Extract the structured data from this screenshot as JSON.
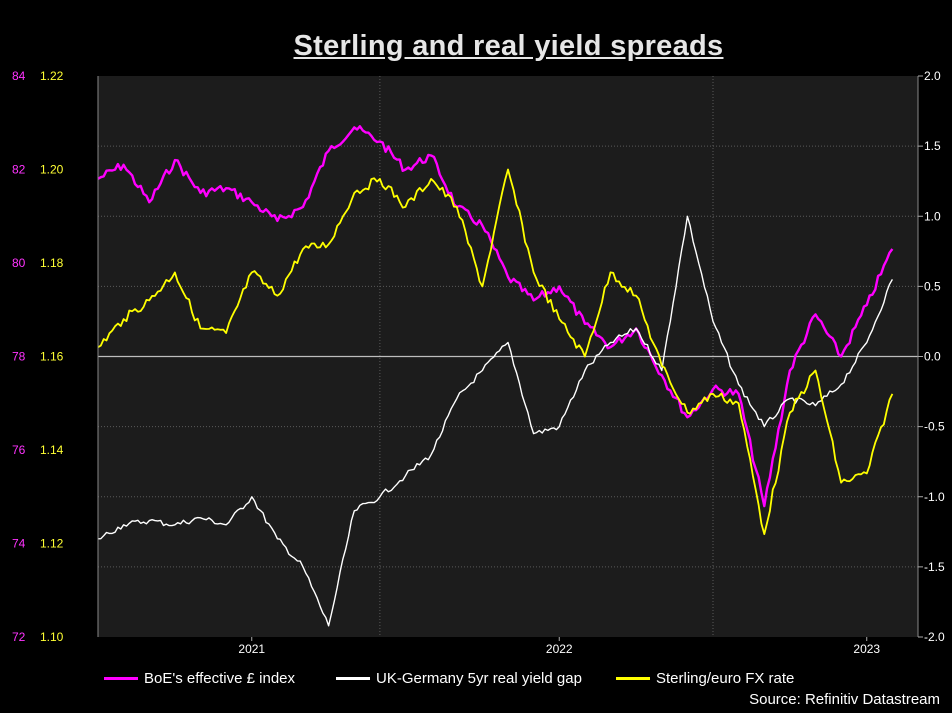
{
  "chart_data": {
    "type": "line",
    "title": "Sterling and real yield spreads",
    "source": "Source: Refinitiv Datastream",
    "x_ticks": [
      "2021",
      "2022",
      "2023"
    ],
    "x_range": [
      "2020-07",
      "2023-03"
    ],
    "left_axis_outer": {
      "ticks": [
        72,
        74,
        76,
        78,
        80,
        82,
        84
      ],
      "range": [
        72,
        84
      ],
      "color": "#ff33ff"
    },
    "left_axis_inner": {
      "ticks": [
        "1.10",
        "1.12",
        "1.14",
        "1.16",
        "1.18",
        "1.20",
        "1.22"
      ],
      "range": [
        1.1,
        1.22
      ],
      "color": "#ffff33"
    },
    "right_axis": {
      "ticks": [
        "-2.0",
        "-1.5",
        "-1.0",
        "-0.5",
        "0.0",
        "0.5",
        "1.0",
        "1.5",
        "2.0"
      ],
      "range": [
        -2.0,
        2.0
      ],
      "color": "#ffffff"
    },
    "series": [
      {
        "name": "BoE's effective £ index",
        "color": "#ff00ff",
        "axis": "left_outer",
        "x": [
          "2020-07",
          "2020-08",
          "2020-09",
          "2020-10",
          "2020-11",
          "2020-12",
          "2021-01",
          "2021-02",
          "2021-03",
          "2021-04",
          "2021-05",
          "2021-06",
          "2021-07",
          "2021-08",
          "2021-09",
          "2021-10",
          "2021-11",
          "2021-12",
          "2022-01",
          "2022-02",
          "2022-03",
          "2022-04",
          "2022-05",
          "2022-06",
          "2022-07",
          "2022-08",
          "2022-09",
          "2022-10",
          "2022-11",
          "2022-12",
          "2023-01",
          "2023-02"
        ],
        "values": [
          81.8,
          82.1,
          81.3,
          82.2,
          81.5,
          81.6,
          81.3,
          80.9,
          81.2,
          82.4,
          82.9,
          82.6,
          82.0,
          82.3,
          81.2,
          80.8,
          79.7,
          79.2,
          79.5,
          78.7,
          78.2,
          78.6,
          77.6,
          76.7,
          77.3,
          77.2,
          74.8,
          77.7,
          78.9,
          78.0,
          79.1,
          80.3
        ]
      },
      {
        "name": "UK-Germany 5yr real yield gap",
        "color": "#ffffff",
        "axis": "right",
        "x": [
          "2020-07",
          "2020-08",
          "2020-09",
          "2020-10",
          "2020-11",
          "2020-12",
          "2021-01",
          "2021-02",
          "2021-03",
          "2021-04",
          "2021-05",
          "2021-06",
          "2021-07",
          "2021-08",
          "2021-09",
          "2021-10",
          "2021-11",
          "2021-12",
          "2022-01",
          "2022-02",
          "2022-03",
          "2022-04",
          "2022-05",
          "2022-06",
          "2022-07",
          "2022-08",
          "2022-09",
          "2022-10",
          "2022-11",
          "2022-12",
          "2023-01",
          "2023-02"
        ],
        "values": [
          -1.3,
          -1.2,
          -1.17,
          -1.2,
          -1.15,
          -1.2,
          -1.0,
          -1.3,
          -1.5,
          -1.92,
          -1.1,
          -1.0,
          -0.85,
          -0.7,
          -0.3,
          -0.1,
          0.1,
          -0.55,
          -0.5,
          -0.1,
          0.1,
          0.2,
          -0.1,
          1.0,
          0.25,
          -0.2,
          -0.5,
          -0.3,
          -0.35,
          -0.2,
          0.1,
          0.55
        ]
      },
      {
        "name": "Sterling/euro FX rate",
        "color": "#ffff00",
        "axis": "left_inner",
        "x": [
          "2020-07",
          "2020-08",
          "2020-09",
          "2020-10",
          "2020-11",
          "2020-12",
          "2021-01",
          "2021-02",
          "2021-03",
          "2021-04",
          "2021-05",
          "2021-06",
          "2021-07",
          "2021-08",
          "2021-09",
          "2021-10",
          "2021-11",
          "2021-12",
          "2022-01",
          "2022-02",
          "2022-03",
          "2022-04",
          "2022-05",
          "2022-06",
          "2022-07",
          "2022-08",
          "2022-09",
          "2022-10",
          "2022-11",
          "2022-12",
          "2023-01",
          "2023-02"
        ],
        "values": [
          1.162,
          1.168,
          1.172,
          1.178,
          1.166,
          1.165,
          1.178,
          1.173,
          1.183,
          1.184,
          1.195,
          1.198,
          1.192,
          1.198,
          1.192,
          1.175,
          1.2,
          1.178,
          1.168,
          1.16,
          1.178,
          1.173,
          1.158,
          1.148,
          1.152,
          1.15,
          1.122,
          1.148,
          1.157,
          1.133,
          1.135,
          1.152
        ]
      }
    ]
  }
}
